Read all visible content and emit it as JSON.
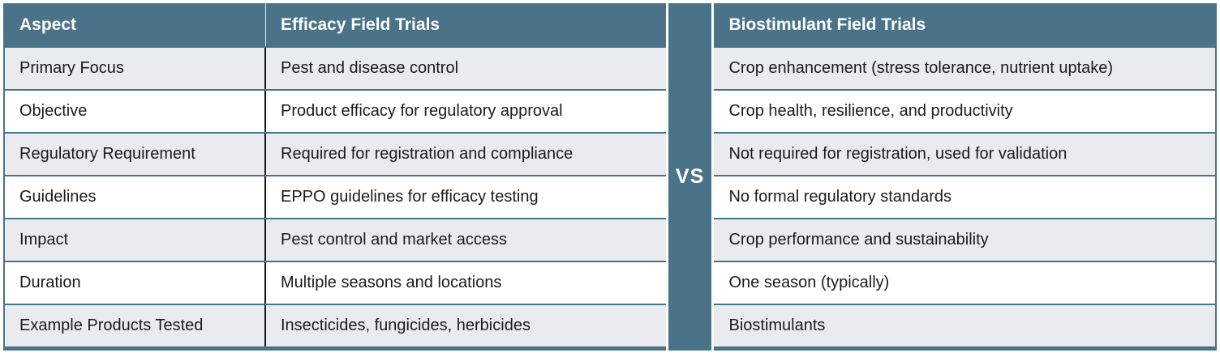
{
  "vs_label": "VS",
  "colors": {
    "teal_header": "#4a7389",
    "row_shade": "#e9ebee",
    "row_plain": "#ffffff",
    "row_border": "#45758d",
    "column_divider": "#161616",
    "header_text": "#ffffff",
    "body_text": "#1b1b1b"
  },
  "left_table": {
    "headers": [
      "Aspect",
      "Efficacy Field Trials"
    ],
    "rows": [
      [
        "Primary Focus",
        "Pest and disease control"
      ],
      [
        "Objective",
        "Product efficacy for regulatory approval"
      ],
      [
        "Regulatory Requirement",
        "Required for registration and compliance"
      ],
      [
        "Guidelines",
        "EPPO guidelines for efficacy testing"
      ],
      [
        "Impact",
        "Pest control and market access"
      ],
      [
        "Duration",
        "Multiple seasons and locations"
      ],
      [
        "Example Products Tested",
        "Insecticides, fungicides, herbicides"
      ]
    ]
  },
  "right_table": {
    "header": "Biostimulant Field Trials",
    "rows": [
      "Crop enhancement (stress tolerance, nutrient uptake)",
      "Crop health, resilience, and productivity",
      "Not required for registration, used for validation",
      "No formal regulatory standards",
      "Crop performance and sustainability",
      "One season (typically)",
      "Biostimulants"
    ]
  }
}
